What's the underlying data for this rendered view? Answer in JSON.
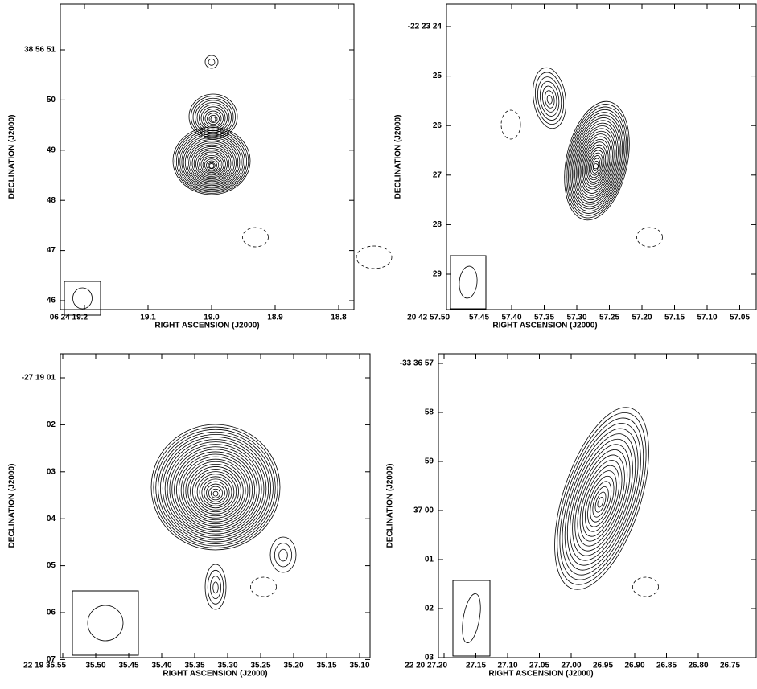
{
  "panels": [
    {
      "x_axis": {
        "label": "RIGHT ASCENSION (J2000)",
        "ticks": [
          "06 24 19.2",
          "19.1",
          "19.0",
          "18.9",
          "18.8"
        ]
      },
      "y_axis": {
        "label": "DECLINATION (J2000)",
        "ticks": [
          "38 56 51",
          "50",
          "49",
          "48",
          "47",
          "46"
        ]
      }
    },
    {
      "x_axis": {
        "label": "RIGHT ASCENSION (J2000)",
        "ticks": [
          "20 42 57.50",
          "57.45",
          "57.40",
          "57.35",
          "57.30",
          "57.25",
          "57.20",
          "57.15",
          "57.10",
          "57.05"
        ]
      },
      "y_axis": {
        "label": "DECLINATION (J2000)",
        "ticks": [
          "-22 23 24",
          "25",
          "26",
          "27",
          "28",
          "29"
        ]
      }
    },
    {
      "x_axis": {
        "label": "RIGHT ASCENSION (J2000)",
        "ticks": [
          "22 19 35.55",
          "35.50",
          "35.45",
          "35.40",
          "35.35",
          "35.30",
          "35.25",
          "35.20",
          "35.15",
          "35.10"
        ]
      },
      "y_axis": {
        "label": "DECLINATION (J2000)",
        "ticks": [
          "-27 19 01",
          "02",
          "03",
          "04",
          "05",
          "06",
          "07"
        ]
      }
    },
    {
      "x_axis": {
        "label": "RIGHT ASCENSION (J2000)",
        "ticks": [
          "22 20 27.20",
          "27.15",
          "27.10",
          "27.05",
          "27.00",
          "26.95",
          "26.90",
          "26.85",
          "26.80",
          "26.75"
        ]
      },
      "y_axis": {
        "label": "DECLINATION (J2000)",
        "ticks": [
          "-33 36 57",
          "58",
          "59",
          "37 00",
          "01",
          "02",
          "03"
        ]
      }
    }
  ]
}
